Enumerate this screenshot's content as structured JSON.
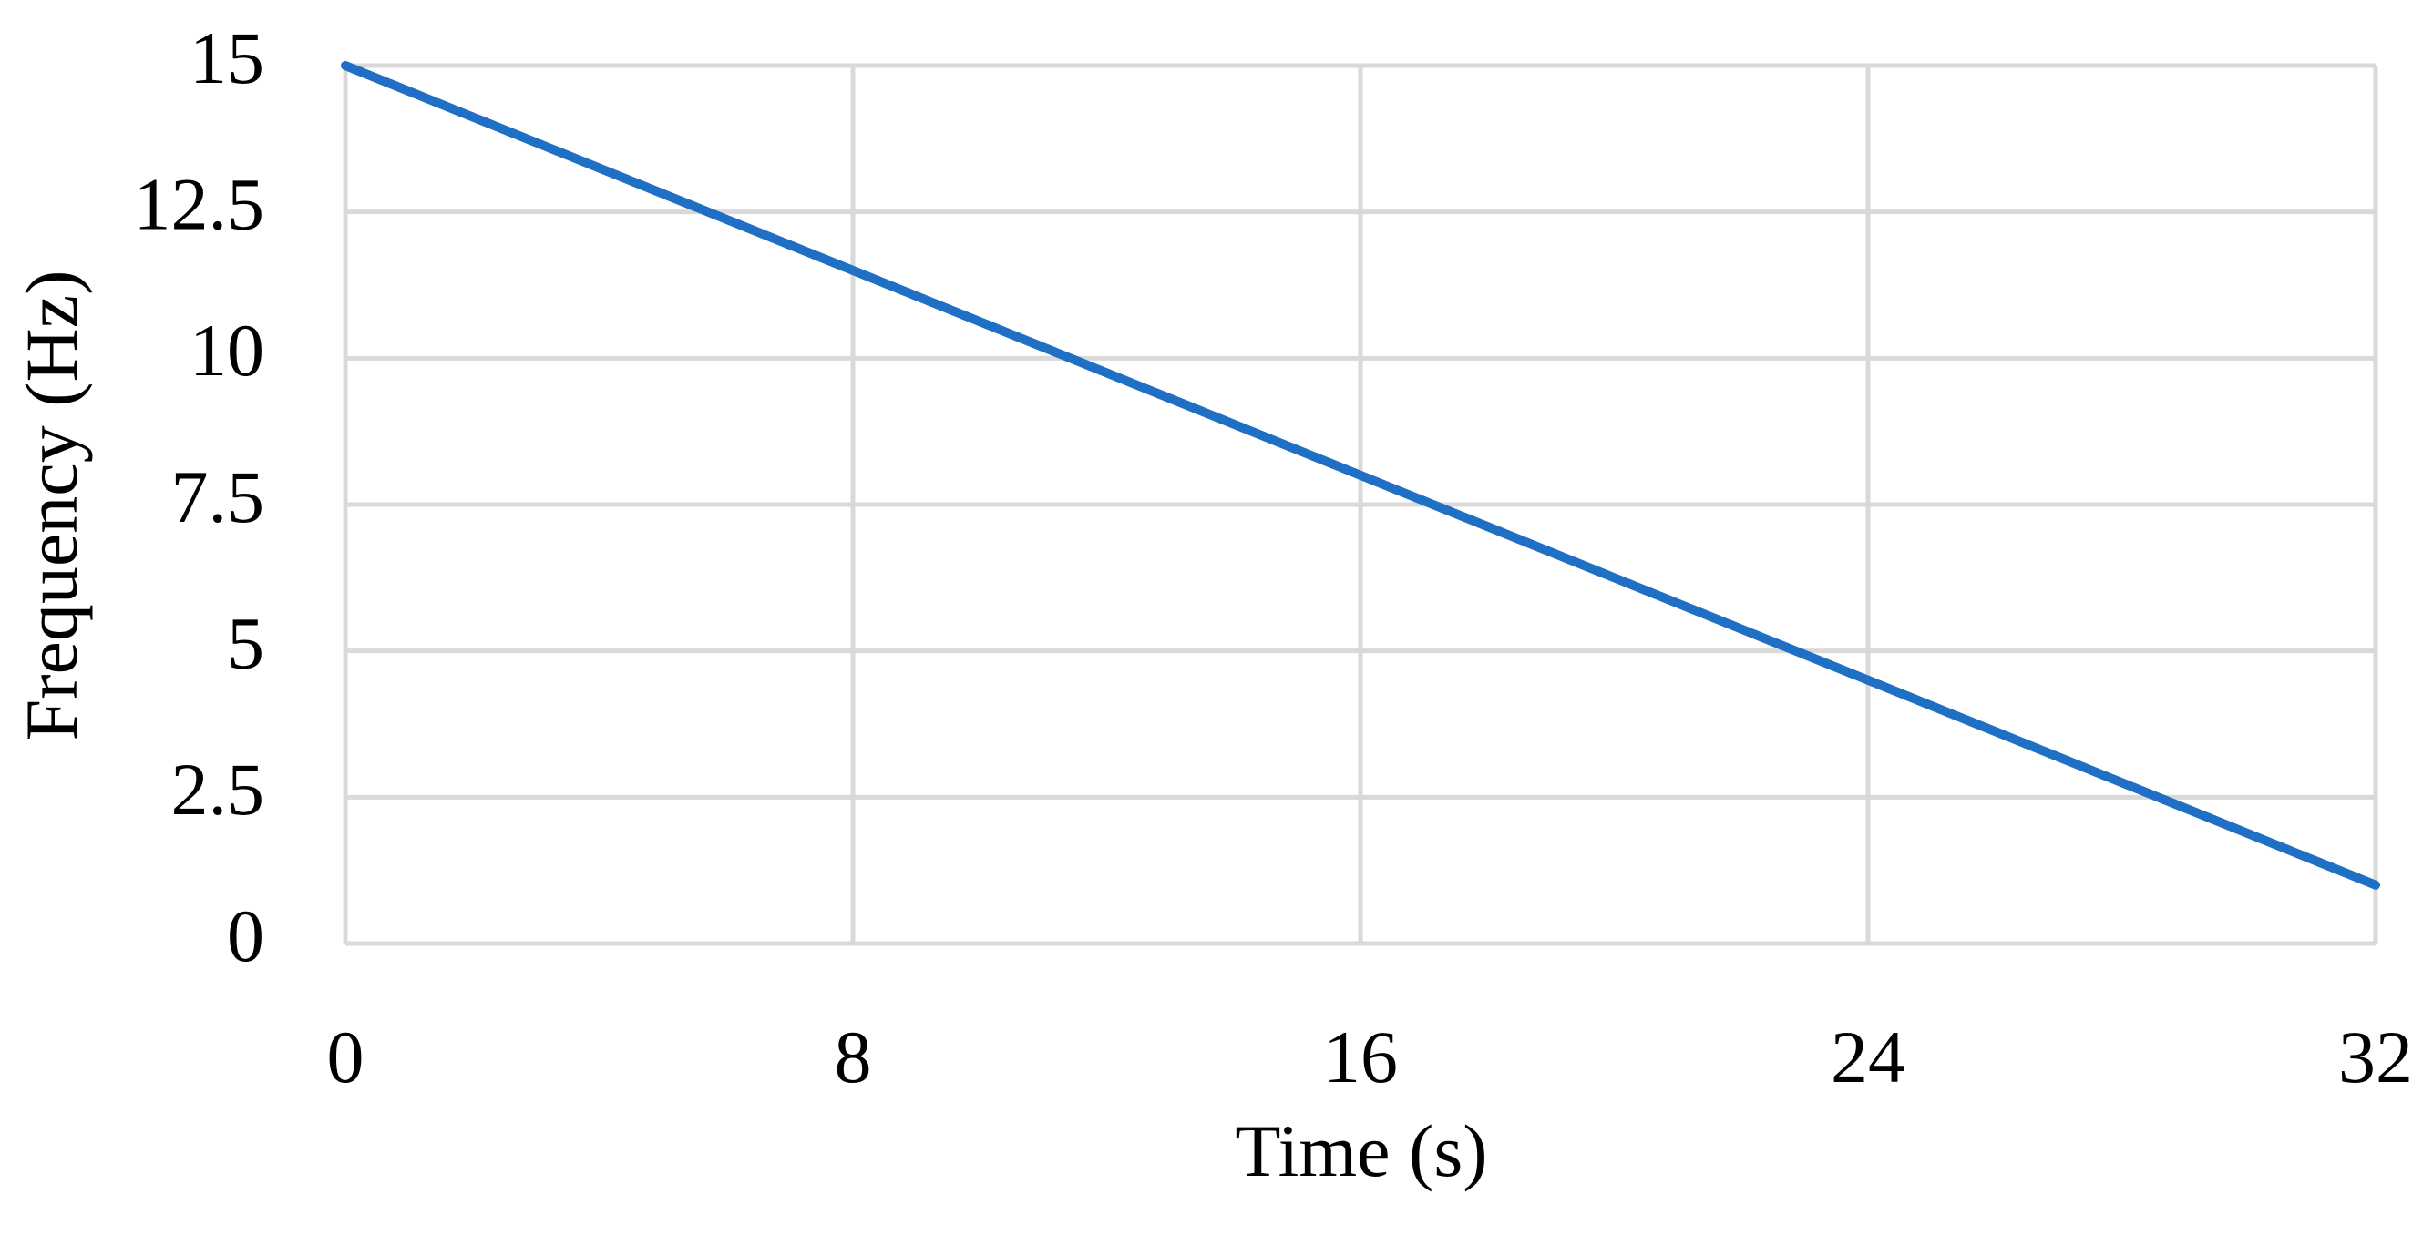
{
  "chart_data": {
    "type": "line",
    "x_label": "Time (s)",
    "y_label": "Frequency (Hz)",
    "x": [
      0,
      32
    ],
    "series": [
      {
        "name": "Frequency",
        "color": "#1f6fc5",
        "values": [
          15,
          1
        ]
      }
    ],
    "xlim": [
      0,
      32
    ],
    "xticks": [
      0,
      8,
      16,
      24,
      32
    ],
    "ylim": [
      0,
      15
    ],
    "yticks": [
      0,
      2.5,
      5,
      7.5,
      10,
      12.5,
      15
    ],
    "grid": true
  }
}
